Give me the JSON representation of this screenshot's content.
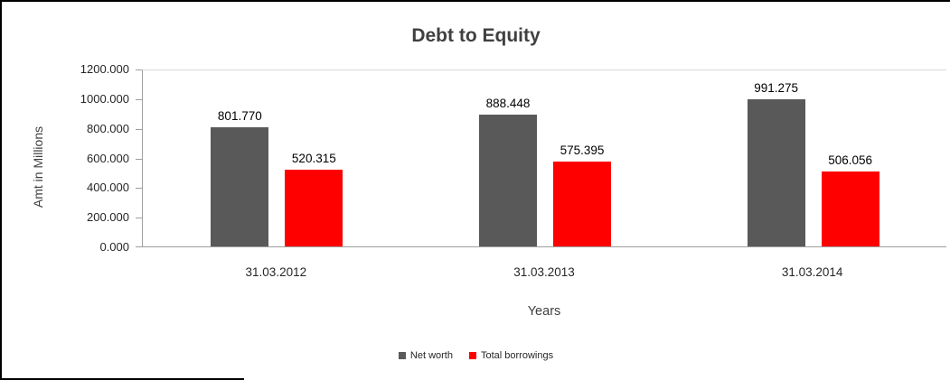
{
  "chart_data": {
    "type": "bar",
    "title": "Debt to Equity",
    "xlabel": "Years",
    "ylabel": "Amt in Millions",
    "categories": [
      "31.03.2012",
      "31.03.2013",
      "31.03.2014"
    ],
    "series": [
      {
        "name": "Net worth",
        "color": "#595959",
        "values": [
          801.77,
          888.448,
          991.275
        ],
        "labels": [
          "801.770",
          "888.448",
          "991.275"
        ]
      },
      {
        "name": "Total borrowings",
        "color": "#ff0000",
        "values": [
          520.315,
          575.395,
          506.056
        ],
        "labels": [
          "520.315",
          "575.395",
          "506.056"
        ]
      }
    ],
    "ylim": [
      0,
      1200
    ],
    "ytick_step": 200,
    "yticks": [
      "0.000",
      "200.000",
      "400.000",
      "600.000",
      "800.000",
      "1000.000",
      "1200.000"
    ],
    "grid": "off",
    "legend_position": "bottom"
  }
}
